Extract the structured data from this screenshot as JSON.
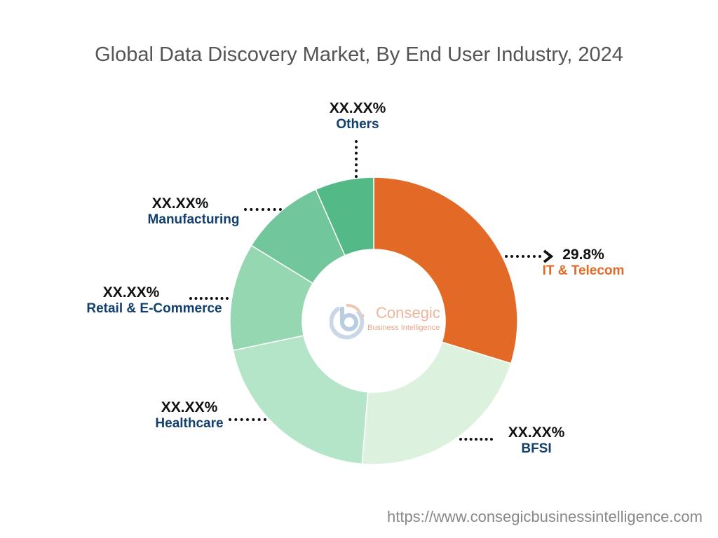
{
  "chart_data": {
    "type": "pie",
    "variant": "donut",
    "title": "Global Data Discovery Market, By End User Industry, 2024",
    "slices": [
      {
        "label": "IT & Telecom",
        "display": "29.8%",
        "value": 29.8,
        "color": "#E36A26"
      },
      {
        "label": "BFSI",
        "display": "XX.XX%",
        "value": 21.5,
        "color": "#DCF2DE"
      },
      {
        "label": "Healthcare",
        "display": "XX.XX%",
        "value": 20.4,
        "color": "#B5E5C9"
      },
      {
        "label": "Retail & E-Commerce",
        "display": "XX.XX%",
        "value": 12.1,
        "color": "#95D7B1"
      },
      {
        "label": "Manufacturing",
        "display": "XX.XX%",
        "value": 9.6,
        "color": "#72C69C"
      },
      {
        "label": "Others",
        "display": "XX.XX%",
        "value": 6.6,
        "color": "#52B987"
      }
    ],
    "start_angle": "top",
    "direction": "clockwise"
  },
  "logo": {
    "name": "Consegic",
    "tagline": "Business Intelligence"
  },
  "footer": {
    "url": "https://www.consegicbusinessintelligence.com"
  }
}
